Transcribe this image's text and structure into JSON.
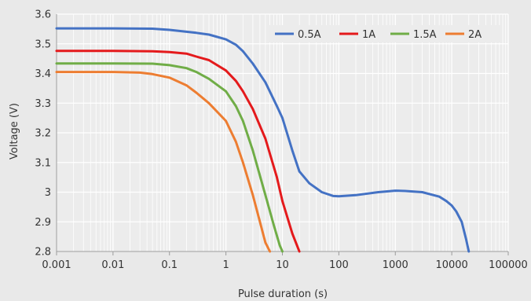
{
  "chart_data": {
    "type": "line",
    "xlabel": "Pulse duration (s)",
    "ylabel": "Voltage (V)",
    "x_scale": "log",
    "xlim": [
      0.001,
      100000
    ],
    "ylim": [
      2.8,
      3.6
    ],
    "x_ticks": [
      0.001,
      0.01,
      0.1,
      1,
      10,
      100,
      1000,
      10000,
      100000
    ],
    "x_tick_labels": [
      "0.001",
      "0.01",
      "0.1",
      "1",
      "10",
      "100",
      "1000",
      "10000",
      "100000"
    ],
    "y_ticks": [
      2.8,
      2.9,
      3.0,
      3.1,
      3.2,
      3.3,
      3.4,
      3.5,
      3.6
    ],
    "y_tick_labels": [
      "2.8",
      "2.9",
      "3",
      "3.1",
      "3.2",
      "3.3",
      "3.4",
      "3.5",
      "3.6"
    ],
    "grid": true,
    "legend_position": "top-right",
    "series": [
      {
        "name": "0.5A",
        "color": "#4472c4",
        "x": [
          0.001,
          0.01,
          0.05,
          0.1,
          0.3,
          0.5,
          1,
          1.5,
          2,
          3,
          5,
          8,
          10,
          15,
          20,
          30,
          50,
          80,
          100,
          200,
          500,
          1000,
          1500,
          3000,
          6000,
          8000,
          10000,
          12000,
          15000,
          18000,
          20000
        ],
        "y": [
          3.552,
          3.552,
          3.551,
          3.547,
          3.537,
          3.531,
          3.515,
          3.497,
          3.475,
          3.433,
          3.37,
          3.29,
          3.25,
          3.14,
          3.07,
          3.03,
          3.0,
          2.987,
          2.986,
          2.99,
          3.0,
          3.005,
          3.004,
          3.0,
          2.985,
          2.97,
          2.955,
          2.935,
          2.9,
          2.84,
          2.8
        ]
      },
      {
        "name": "1A",
        "color": "#e41a1c",
        "x": [
          0.001,
          0.01,
          0.05,
          0.1,
          0.2,
          0.3,
          0.5,
          1,
          1.5,
          2,
          3,
          5,
          8,
          10,
          15,
          20
        ],
        "y": [
          3.476,
          3.476,
          3.475,
          3.472,
          3.467,
          3.457,
          3.445,
          3.41,
          3.375,
          3.34,
          3.28,
          3.18,
          3.05,
          2.97,
          2.86,
          2.8
        ]
      },
      {
        "name": "1.5A",
        "color": "#70ad47",
        "x": [
          0.001,
          0.01,
          0.05,
          0.1,
          0.2,
          0.3,
          0.5,
          1,
          1.5,
          2,
          3,
          5,
          7,
          9,
          10
        ],
        "y": [
          3.434,
          3.434,
          3.433,
          3.428,
          3.418,
          3.405,
          3.382,
          3.34,
          3.29,
          3.24,
          3.14,
          2.99,
          2.89,
          2.82,
          2.8
        ]
      },
      {
        "name": "2A",
        "color": "#ed7d31",
        "x": [
          0.001,
          0.01,
          0.03,
          0.05,
          0.1,
          0.2,
          0.3,
          0.5,
          1,
          1.5,
          2,
          3,
          4,
          5,
          6
        ],
        "y": [
          3.405,
          3.405,
          3.403,
          3.398,
          3.386,
          3.36,
          3.335,
          3.3,
          3.24,
          3.17,
          3.1,
          2.99,
          2.9,
          2.83,
          2.8
        ]
      }
    ]
  }
}
